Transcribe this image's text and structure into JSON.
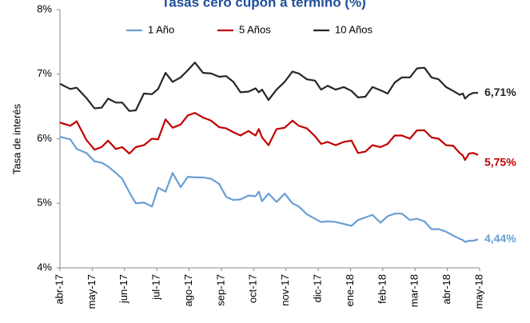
{
  "chart_data": {
    "type": "line",
    "title": "Tasas cero cupón a término (%)",
    "y_label": "Tasa de interés",
    "x": [
      0,
      0.32,
      0.52,
      0.82,
      1.07,
      1.29,
      1.49,
      1.73,
      1.93,
      2.15,
      2.35,
      2.6,
      2.85,
      3.04,
      3.27,
      3.49,
      3.74,
      3.96,
      4.18,
      4.43,
      4.68,
      4.93,
      5.15,
      5.37,
      5.59,
      5.84,
      6.06,
      6.16,
      6.26,
      6.46,
      6.71,
      6.96,
      7.2,
      7.4,
      7.65,
      7.9,
      8.09,
      8.29,
      8.54,
      8.79,
      9.03,
      9.23,
      9.46,
      9.68,
      9.93,
      10.15,
      10.37,
      10.59,
      10.84,
      11.06,
      11.29,
      11.51,
      11.73,
      11.96,
      12.18,
      12.38,
      12.48,
      12.55,
      12.67,
      12.8,
      12.95
    ],
    "series": [
      {
        "name": "1 Año",
        "color": "#6a9fd4",
        "end_label": "4,44%",
        "values": [
          6.03,
          5.99,
          5.84,
          5.78,
          5.65,
          5.63,
          5.57,
          5.47,
          5.38,
          5.17,
          5.0,
          5.01,
          4.95,
          5.24,
          5.18,
          5.47,
          5.25,
          5.41,
          5.4,
          5.4,
          5.38,
          5.3,
          5.1,
          5.05,
          5.06,
          5.12,
          5.11,
          5.18,
          5.03,
          5.15,
          5.02,
          5.15,
          5.0,
          4.95,
          4.83,
          4.76,
          4.71,
          4.72,
          4.71,
          4.68,
          4.65,
          4.74,
          4.78,
          4.82,
          4.7,
          4.8,
          4.84,
          4.84,
          4.74,
          4.76,
          4.72,
          4.6,
          4.6,
          4.56,
          4.5,
          4.45,
          4.43,
          4.4,
          4.42,
          4.42,
          4.44
        ]
      },
      {
        "name": "5 Años",
        "color": "#c00000",
        "end_label": "5,75%",
        "values": [
          6.25,
          6.2,
          6.27,
          5.98,
          5.83,
          5.87,
          5.97,
          5.84,
          5.87,
          5.77,
          5.87,
          5.9,
          6.0,
          5.99,
          6.3,
          6.17,
          6.22,
          6.36,
          6.4,
          6.33,
          6.28,
          6.18,
          6.16,
          6.1,
          6.05,
          6.12,
          6.05,
          6.15,
          6.02,
          5.9,
          6.15,
          6.17,
          6.28,
          6.2,
          6.16,
          6.04,
          5.92,
          5.95,
          5.9,
          5.95,
          5.97,
          5.78,
          5.8,
          5.9,
          5.87,
          5.92,
          6.05,
          6.05,
          6.0,
          6.13,
          6.13,
          6.02,
          6.0,
          5.9,
          5.89,
          5.78,
          5.74,
          5.67,
          5.77,
          5.78,
          5.75
        ]
      },
      {
        "name": "10 Años",
        "color": "#262626",
        "end_label": "6,71%",
        "values": [
          6.85,
          6.77,
          6.79,
          6.63,
          6.47,
          6.48,
          6.62,
          6.56,
          6.56,
          6.43,
          6.44,
          6.7,
          6.69,
          6.77,
          7.02,
          6.88,
          6.95,
          7.06,
          7.18,
          7.02,
          7.01,
          6.96,
          6.97,
          6.88,
          6.72,
          6.73,
          6.78,
          6.72,
          6.76,
          6.6,
          6.76,
          6.88,
          7.04,
          7.01,
          6.92,
          6.9,
          6.76,
          6.82,
          6.76,
          6.8,
          6.74,
          6.64,
          6.65,
          6.8,
          6.75,
          6.7,
          6.87,
          6.95,
          6.95,
          7.09,
          7.1,
          6.95,
          6.92,
          6.8,
          6.74,
          6.68,
          6.7,
          6.62,
          6.68,
          6.71,
          6.71
        ]
      }
    ],
    "xlim": [
      0,
      13
    ],
    "xticks": [
      {
        "value": 0,
        "label": "abr-17"
      },
      {
        "value": 1,
        "label": "may-17"
      },
      {
        "value": 2,
        "label": "jun-17"
      },
      {
        "value": 3,
        "label": "jul-17"
      },
      {
        "value": 4,
        "label": "ago-17"
      },
      {
        "value": 5,
        "label": "sep-17"
      },
      {
        "value": 6,
        "label": "oct-17"
      },
      {
        "value": 7,
        "label": "nov-17"
      },
      {
        "value": 8,
        "label": "dic-17"
      },
      {
        "value": 9,
        "label": "ene-18"
      },
      {
        "value": 10,
        "label": "feb-18"
      },
      {
        "value": 11,
        "label": "mar-18"
      },
      {
        "value": 12,
        "label": "abr-18"
      },
      {
        "value": 13,
        "label": "may-18"
      }
    ],
    "ylim": [
      4,
      8
    ],
    "yticks": [
      {
        "value": 4,
        "label": "4%"
      },
      {
        "value": 5,
        "label": "5%"
      },
      {
        "value": 6,
        "label": "6%"
      },
      {
        "value": 7,
        "label": "7%"
      },
      {
        "value": 8,
        "label": "8%"
      }
    ],
    "grid": false,
    "legend": "top"
  }
}
